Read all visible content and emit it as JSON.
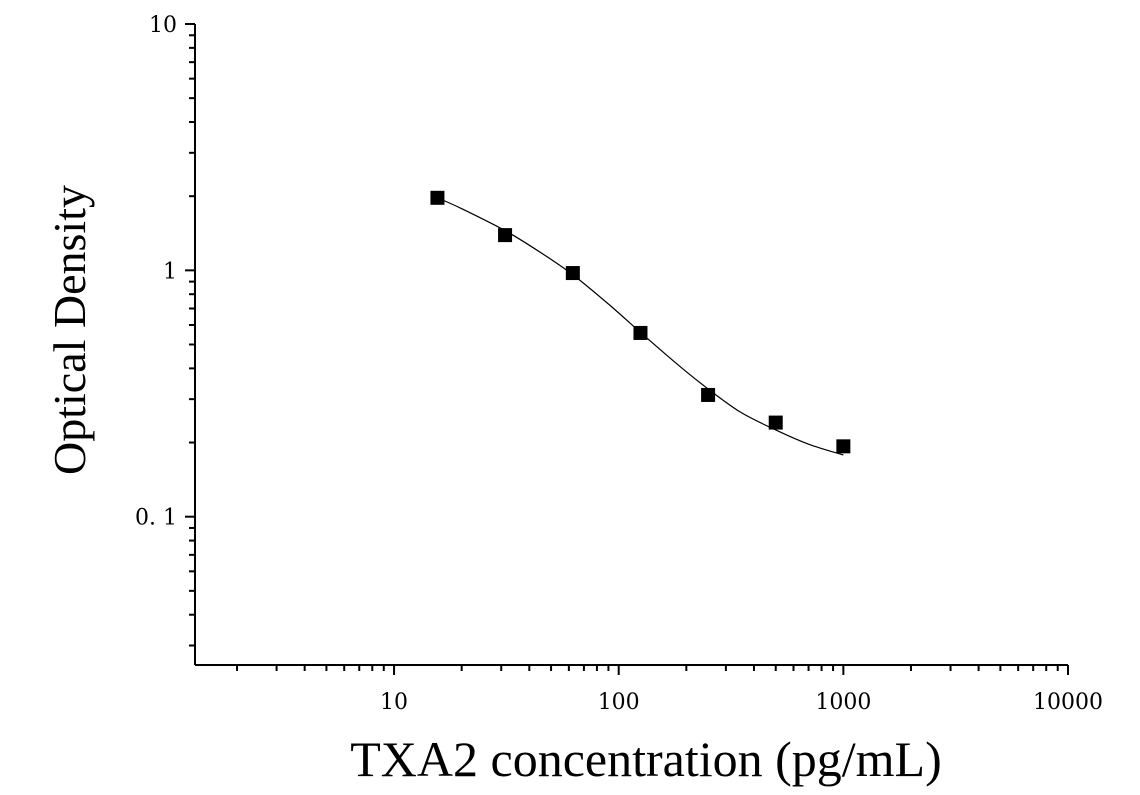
{
  "chart_data": {
    "type": "scatter",
    "title": "",
    "xlabel": "TXA2 concentration (pg/mL)",
    "ylabel": "Optical Density",
    "x_scale": "log",
    "y_scale": "log",
    "xlim": [
      1.3,
      10000
    ],
    "ylim": [
      0.025,
      10
    ],
    "x_ticks": [
      {
        "value": 10,
        "label": "10"
      },
      {
        "value": 100,
        "label": "100"
      },
      {
        "value": 1000,
        "label": "1000"
      },
      {
        "value": 10000,
        "label": "10000"
      }
    ],
    "y_ticks": [
      {
        "value": 0.1,
        "label": "0. 1"
      },
      {
        "value": 1,
        "label": "1"
      },
      {
        "value": 10,
        "label": "10"
      }
    ],
    "grid": false,
    "legend": "none",
    "marker": "square",
    "color": "#000000",
    "points": [
      {
        "x": 15.6,
        "y": 1.97
      },
      {
        "x": 31.2,
        "y": 1.39
      },
      {
        "x": 62.5,
        "y": 0.975
      },
      {
        "x": 125,
        "y": 0.557
      },
      {
        "x": 250,
        "y": 0.312
      },
      {
        "x": 500,
        "y": 0.241
      },
      {
        "x": 1000,
        "y": 0.193
      }
    ],
    "fit_curve": [
      {
        "x": 15.6,
        "y": 1.97
      },
      {
        "x": 20,
        "y": 1.78
      },
      {
        "x": 31.2,
        "y": 1.45
      },
      {
        "x": 45,
        "y": 1.18
      },
      {
        "x": 62.5,
        "y": 0.96
      },
      {
        "x": 90,
        "y": 0.73
      },
      {
        "x": 125,
        "y": 0.56
      },
      {
        "x": 180,
        "y": 0.42
      },
      {
        "x": 250,
        "y": 0.33
      },
      {
        "x": 350,
        "y": 0.265
      },
      {
        "x": 500,
        "y": 0.225
      },
      {
        "x": 700,
        "y": 0.197
      },
      {
        "x": 1000,
        "y": 0.178
      }
    ]
  }
}
